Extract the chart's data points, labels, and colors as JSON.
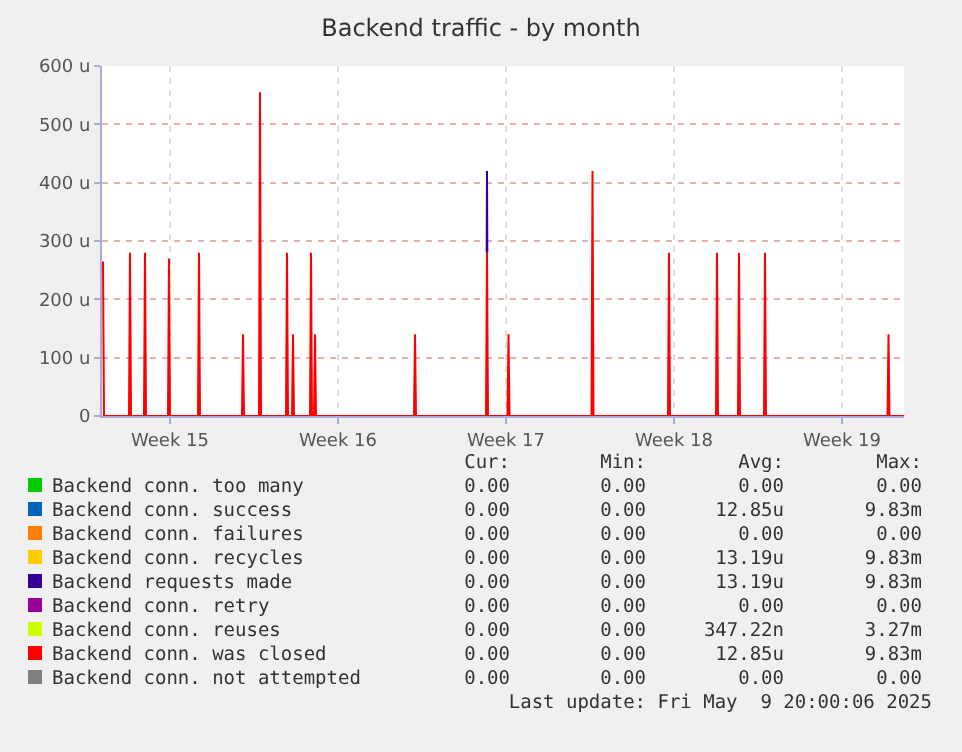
{
  "chart_data": {
    "type": "line",
    "title": "Backend traffic - by month",
    "x": [
      "2025-04-07T17:00",
      "2025-04-07T18:00",
      "2025-04-08T19:00",
      "2025-04-08T20:00",
      "2025-04-08T21:00",
      "2025-04-09T10:00",
      "2025-04-09T11:00",
      "2025-04-09T12:00",
      "2025-04-10T10:00",
      "2025-04-10T11:00",
      "2025-04-10T12:00",
      "2025-04-11T16:00",
      "2025-04-11T17:00",
      "2025-04-11T18:00",
      "2025-04-13T12:00",
      "2025-04-13T13:00",
      "2025-04-13T14:00",
      "2025-04-14T05:00",
      "2025-04-14T06:00",
      "2025-04-14T07:00",
      "2025-04-15T08:00",
      "2025-04-15T09:00",
      "2025-04-15T10:00",
      "2025-04-15T14:00",
      "2025-04-15T15:00",
      "2025-04-15T16:00",
      "2025-04-16T08:00",
      "2025-04-16T09:00",
      "2025-04-16T10:00",
      "2025-04-16T12:00",
      "2025-04-16T13:00",
      "2025-04-16T14:00",
      "2025-04-20T16:00",
      "2025-04-20T17:00",
      "2025-04-20T18:00",
      "2025-04-23T16:00",
      "2025-04-23T17:00",
      "2025-04-23T18:00",
      "2025-04-24T13:30",
      "2025-04-24T14:30",
      "2025-04-24T15:30",
      "2025-04-28T01:30",
      "2025-04-28T02:30",
      "2025-04-28T03:30",
      "2025-05-01T06:00",
      "2025-05-01T07:00",
      "2025-05-01T08:00",
      "2025-05-03T06:00",
      "2025-05-03T07:00",
      "2025-05-03T08:00",
      "2025-05-04T04:00",
      "2025-05-04T05:00",
      "2025-05-04T06:00",
      "2025-05-05T06:00",
      "2025-05-05T07:00",
      "2025-05-05T08:00",
      "2025-05-10T09:30",
      "2025-05-10T10:30",
      "2025-05-10T11:30",
      "2025-05-11T02:00"
    ],
    "series": [
      {
        "name": "Backend conn. too many",
        "color": "#00cc00",
        "values": [
          null,
          null,
          null,
          null,
          null,
          null,
          null,
          null,
          null,
          null,
          null,
          null,
          null,
          null,
          null,
          null,
          null,
          null,
          null,
          null,
          null,
          null,
          null,
          null,
          null,
          null,
          null,
          null,
          null,
          null,
          null,
          null,
          null,
          null,
          null,
          null,
          null,
          null,
          null,
          null,
          null,
          null,
          null,
          null,
          null,
          null,
          null,
          null,
          null,
          null,
          null,
          null,
          null,
          null,
          null,
          null,
          null,
          null,
          null,
          null
        ]
      },
      {
        "name": "Backend conn. failures",
        "color": "#ff8000",
        "values": [
          null,
          null,
          null,
          null,
          null,
          null,
          null,
          null,
          null,
          null,
          null,
          null,
          null,
          null,
          null,
          null,
          null,
          null,
          null,
          null,
          null,
          null,
          null,
          null,
          null,
          null,
          null,
          null,
          null,
          null,
          null,
          null,
          null,
          null,
          null,
          null,
          null,
          null,
          null,
          null,
          null,
          null,
          null,
          null,
          null,
          null,
          null,
          null,
          null,
          null,
          null,
          null,
          null,
          null,
          null,
          null,
          null,
          null,
          null,
          null
        ]
      },
      {
        "name": "Backend conn. retry",
        "color": "#990099",
        "values": [
          null,
          null,
          null,
          null,
          null,
          null,
          null,
          null,
          null,
          null,
          null,
          null,
          null,
          null,
          null,
          null,
          null,
          null,
          null,
          null,
          null,
          null,
          null,
          null,
          null,
          null,
          null,
          null,
          null,
          null,
          null,
          null,
          null,
          null,
          null,
          null,
          null,
          null,
          null,
          null,
          null,
          null,
          null,
          null,
          null,
          null,
          null,
          null,
          null,
          null,
          null,
          null,
          null,
          null,
          null,
          null,
          null,
          null,
          null,
          null
        ]
      },
      {
        "name": "Backend conn. reuses",
        "color": "#ccff00",
        "values": [
          null,
          null,
          null,
          null,
          null,
          null,
          null,
          null,
          null,
          null,
          null,
          null,
          null,
          null,
          null,
          null,
          null,
          null,
          null,
          null,
          null,
          null,
          null,
          null,
          null,
          null,
          null,
          null,
          null,
          null,
          null,
          null,
          null,
          null,
          null,
          null,
          null,
          null,
          null,
          null,
          null,
          null,
          null,
          null,
          null,
          null,
          null,
          null,
          null,
          null,
          null,
          null,
          null,
          null,
          null,
          null,
          null,
          null,
          null,
          null
        ]
      },
      {
        "name": "Backend conn. not attempted",
        "color": "#808080",
        "values": [
          null,
          null,
          null,
          null,
          null,
          null,
          null,
          null,
          null,
          null,
          null,
          null,
          null,
          null,
          null,
          null,
          null,
          null,
          null,
          null,
          null,
          null,
          null,
          null,
          null,
          null,
          null,
          null,
          null,
          null,
          null,
          null,
          null,
          null,
          null,
          null,
          null,
          null,
          null,
          null,
          null,
          null,
          null,
          null,
          null,
          null,
          null,
          null,
          null,
          null,
          null,
          null,
          null,
          null,
          null,
          null,
          null,
          null,
          null,
          null
        ]
      },
      {
        "name": "Backend conn. recycles",
        "color": "#ffcc00",
        "values": [
          null,
          null,
          null,
          null,
          null,
          null,
          null,
          null,
          null,
          null,
          null,
          null,
          null,
          null,
          null,
          null,
          null,
          null,
          null,
          null,
          null,
          null,
          null,
          null,
          null,
          null,
          null,
          null,
          null,
          null,
          null,
          null,
          null,
          null,
          null,
          null,
          null,
          null,
          null,
          null,
          null,
          null,
          null,
          null,
          null,
          null,
          null,
          null,
          null,
          null,
          null,
          null,
          null,
          null,
          null,
          null,
          null,
          null,
          null,
          null
        ]
      },
      {
        "name": "Backend conn. success",
        "color": "#0066b3",
        "values": [
          null,
          null,
          null,
          null,
          null,
          null,
          null,
          null,
          null,
          null,
          null,
          null,
          null,
          null,
          null,
          null,
          null,
          null,
          null,
          null,
          null,
          null,
          null,
          null,
          null,
          null,
          null,
          null,
          null,
          null,
          null,
          null,
          null,
          null,
          null,
          null,
          null,
          null,
          null,
          null,
          null,
          null,
          null,
          null,
          null,
          null,
          null,
          null,
          null,
          null,
          null,
          null,
          null,
          null,
          null,
          null,
          null,
          null,
          null,
          null
        ]
      },
      {
        "name": "Backend requests made",
        "color": "#330099",
        "x": [
          "2025-04-23T16:40",
          "2025-04-23T17:00",
          "2025-04-23T17:20"
        ],
        "values": [
          280,
          420,
          280
        ]
      },
      {
        "name": "Backend conn. was closed",
        "color": "#ff0000",
        "values": [
          265,
          0,
          0,
          280,
          0,
          0,
          280,
          0,
          0,
          270,
          0,
          0,
          280,
          0,
          0,
          140,
          0,
          0,
          555,
          0,
          0,
          280,
          0,
          0,
          140,
          0,
          0,
          280,
          0,
          0,
          140,
          0,
          0,
          140,
          0,
          0,
          280,
          0,
          0,
          140,
          0,
          0,
          420,
          0,
          0,
          280,
          0,
          0,
          280,
          0,
          0,
          280,
          0,
          0,
          280,
          0,
          0,
          140,
          0,
          0
        ]
      }
    ],
    "xlim": [
      "2025-04-07T16:00",
      "2025-05-11T02:00"
    ],
    "xticks": [
      {
        "value": "2025-04-10T12:00",
        "label": "Week 15"
      },
      {
        "value": "2025-04-17T12:00",
        "label": "Week 16"
      },
      {
        "value": "2025-04-24T12:00",
        "label": "Week 17"
      },
      {
        "value": "2025-05-01T12:00",
        "label": "Week 18"
      },
      {
        "value": "2025-05-08T12:00",
        "label": "Week 19"
      }
    ],
    "ylim": [
      0,
      600
    ],
    "yticks": [
      0,
      {
        "value": 100,
        "label": "100 u"
      },
      {
        "value": 200,
        "label": "200 u"
      },
      {
        "value": 300,
        "label": "300 u"
      },
      {
        "value": 400,
        "label": "400 u"
      },
      {
        "value": 500,
        "label": "500 u"
      },
      {
        "value": 600,
        "label": "600 u"
      }
    ],
    "grid": true,
    "legend": "bottom",
    "marker": "none",
    "line_style": "solid",
    "annotations": [
      "Cur:",
      "Min:",
      "Avg:",
      "Max:",
      "0.00",
      "0.00",
      "0.00",
      "0.00",
      "0.00",
      "0.00",
      "12.85u",
      "9.83m",
      "0.00",
      "0.00",
      "0.00",
      "0.00",
      "0.00",
      "0.00",
      "13.19u",
      "9.83m",
      "0.00",
      "0.00",
      "13.19u",
      "9.83m",
      "0.00",
      "0.00",
      "0.00",
      "0.00",
      "0.00",
      "0.00",
      "347.22n",
      "3.27m",
      "0.00",
      "0.00",
      "12.85u",
      "9.83m",
      "0.00",
      "0.00",
      "0.00",
      "0.00",
      "Last update: Fri May  9 20:00:06 2025"
    ]
  }
}
